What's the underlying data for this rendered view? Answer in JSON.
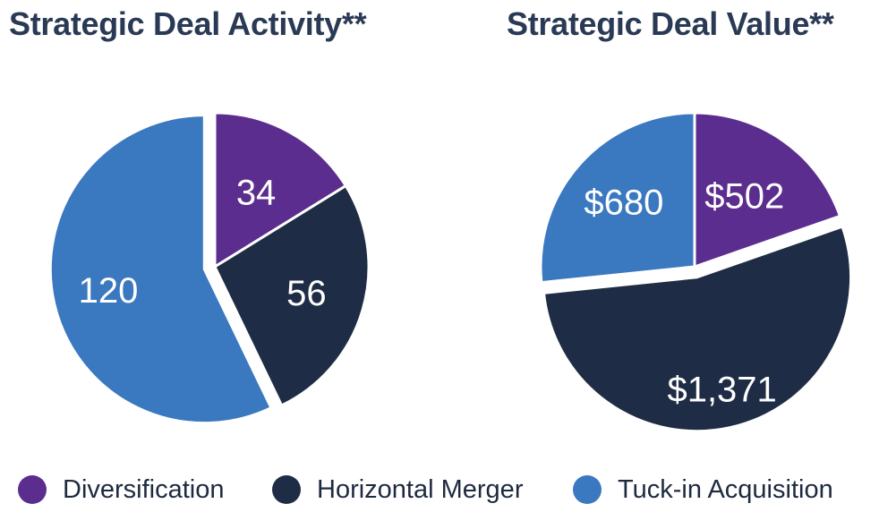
{
  "chart_data": [
    {
      "type": "pie",
      "title": "Strategic Deal Activity**",
      "slices": [
        {
          "label": "Diversification",
          "value": 34,
          "display": "34"
        },
        {
          "label": "Horizontal Merger",
          "value": 56,
          "display": "56"
        },
        {
          "label": "Tuck-in Acquisition",
          "value": 120,
          "display": "120"
        }
      ],
      "exploded": "Tuck-in Acquisition",
      "legend_position": "bottom"
    },
    {
      "type": "pie",
      "title": "Strategic Deal Value**",
      "slices": [
        {
          "label": "Diversification",
          "value": 502,
          "display": "$502"
        },
        {
          "label": "Horizontal Merger",
          "value": 1371,
          "display": "$1,371"
        },
        {
          "label": "Tuck-in Acquisition",
          "value": 680,
          "display": "$680"
        }
      ],
      "exploded": "Horizontal Merger",
      "legend_position": "bottom"
    }
  ],
  "legend": [
    {
      "label": "Diversification",
      "color": "#5b2d8e"
    },
    {
      "label": "Horizontal Merger",
      "color": "#1e2d45"
    },
    {
      "label": "Tuck-in Acquisition",
      "color": "#3a78c0"
    }
  ],
  "colors": {
    "Diversification": "#5b2d8e",
    "Horizontal Merger": "#1e2d45",
    "Tuck-in Acquisition": "#3a78c0",
    "title": "#2a3a55",
    "slice_label": "#ffffff"
  }
}
